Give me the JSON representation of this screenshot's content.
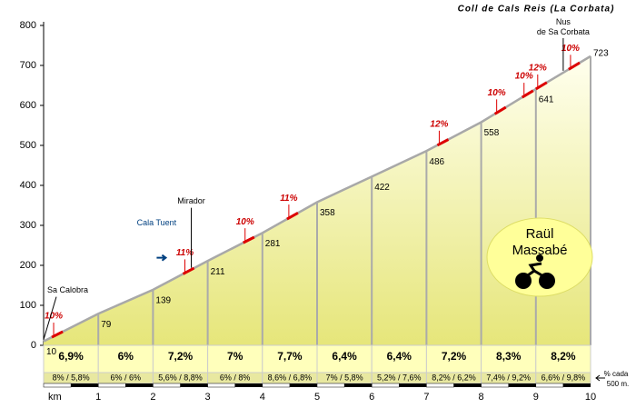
{
  "chart_data": {
    "type": "area",
    "title": "Coll de Cals Reis (La Corbata)",
    "x_label": "km",
    "x": [
      0,
      1,
      2,
      3,
      4,
      5,
      6,
      7,
      8,
      9,
      10
    ],
    "values": [
      10,
      79,
      139,
      211,
      281,
      358,
      422,
      486,
      558,
      641,
      723
    ],
    "xlim": [
      0,
      10
    ],
    "xticks": [
      1,
      2,
      3,
      4,
      5,
      6,
      7,
      8,
      9,
      10
    ],
    "ylim": [
      0,
      800
    ],
    "yticks": [
      0,
      100,
      200,
      300,
      400,
      500,
      600,
      700,
      800
    ],
    "color": "#a8a8a8",
    "km_gradients": {
      "values": [
        6.9,
        6,
        7.2,
        7,
        7.7,
        6.4,
        6.4,
        7.2,
        8.3,
        8.2
      ],
      "value_labels": [
        "6,9%",
        "6%",
        "7,2%",
        "7%",
        "7,7%",
        "6,4%",
        "6,4%",
        "7,2%",
        "8,3%",
        "8,2%"
      ]
    },
    "half_km_gradients": [
      "8% / 5,8%",
      "6% / 6%",
      "5,6% / 8,8%",
      "6% / 8%",
      "8,6% / 6,8%",
      "7% / 5,8%",
      "5,2% / 7,6%",
      "8,2% / 6,2%",
      "7,4% / 9,2%",
      "6,6% / 9,8%"
    ],
    "half_km_note": [
      "% cada",
      "500 m."
    ],
    "steep_sections": {
      "km": [
        0.15,
        2.55,
        3.65,
        4.45,
        7.2,
        8.25,
        8.75,
        9.0,
        9.6
      ],
      "values": [
        10,
        11,
        10,
        11,
        12,
        10,
        10,
        12,
        10
      ],
      "value_labels": [
        "10%",
        "11%",
        "10%",
        "11%",
        "12%",
        "10%",
        "10%",
        "12%",
        "10%"
      ]
    },
    "places": [
      {
        "name": "Sa Calobra",
        "km": 0
      },
      {
        "name": "Cala Tuent",
        "km": 2.1
      },
      {
        "name": "Mirador",
        "km": 2.7
      },
      {
        "name": "Nus de Sa Corbata",
        "km": 9.5
      }
    ],
    "author": [
      "Raül",
      "Massabé"
    ]
  }
}
